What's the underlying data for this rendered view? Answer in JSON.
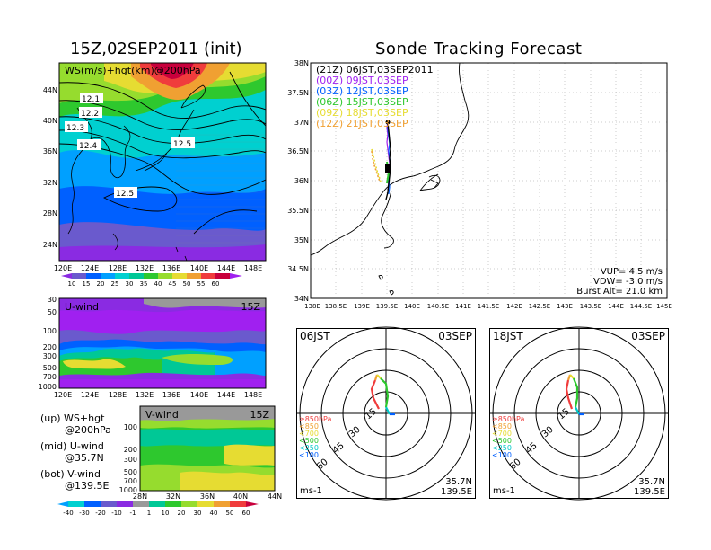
{
  "titles": {
    "left": "15Z,02SEP2011 (init)",
    "right": "Sonde Tracking Forecast"
  },
  "colors": {
    "purple": "#a020f0",
    "violet": "#8a2be2",
    "indigo": "#6a5acd",
    "blue": "#0060ff",
    "sky": "#00a0ff",
    "cyan": "#00d0d0",
    "teal": "#00c896",
    "green": "#2ec82e",
    "lime": "#96dc2e",
    "yellow": "#e6dc32",
    "orange": "#f0a032",
    "red": "#f03c3c",
    "darkred": "#c8003c",
    "gray": "#999999"
  },
  "ws_map": {
    "label": "WS(m/s)+hgt(km)@200hPa",
    "x_ticks": [
      "120E",
      "124E",
      "128E",
      "132E",
      "136E",
      "140E",
      "144E",
      "148E"
    ],
    "y_ticks": [
      "44N",
      "40N",
      "36N",
      "32N",
      "28N",
      "24N"
    ],
    "contour_labels": [
      "12.1",
      "12.2",
      "12.3",
      "12.4",
      "12.5",
      "12.5"
    ],
    "colorbar_ticks": [
      "10",
      "15",
      "20",
      "25",
      "30",
      "35",
      "40",
      "45",
      "50",
      "55",
      "60"
    ]
  },
  "u_wind": {
    "label": "U-wind",
    "time": "15Z",
    "y_ticks": [
      "30",
      "50",
      "100",
      "200",
      "300",
      "500",
      "700",
      "1000"
    ],
    "x_ticks": [
      "120E",
      "124E",
      "128E",
      "132E",
      "136E",
      "140E",
      "144E",
      "148E"
    ]
  },
  "v_wind": {
    "label": "V-wind",
    "time": "15Z",
    "y_ticks": [
      "100",
      "200",
      "300",
      "500",
      "700",
      "1000"
    ],
    "x_ticks": [
      "28N",
      "32N",
      "36N",
      "40N",
      "44N"
    ],
    "colorbar_ticks": [
      "-40",
      "-30",
      "-20",
      "-10",
      "-1",
      "1",
      "10",
      "20",
      "30",
      "40",
      "50",
      "60"
    ]
  },
  "legend_notes": [
    "(up) WS+hgt",
    "@200hPa",
    "(mid) U-wind",
    "@35.7N",
    "(bot) V-wind",
    "@139.5E"
  ],
  "track": {
    "x_ticks": [
      "138E",
      "138.5E",
      "139E",
      "139.5E",
      "140E",
      "140.5E",
      "141E",
      "141.5E",
      "142E",
      "142.5E",
      "143E",
      "143.5E",
      "144E",
      "144.5E",
      "145E"
    ],
    "y_ticks": [
      "38N",
      "37.5N",
      "37N",
      "36.5N",
      "36N",
      "35.5N",
      "35N",
      "34.5N",
      "34N"
    ],
    "launches": [
      {
        "text": "(21Z)  06JST,03SEP2011",
        "color": "#000000"
      },
      {
        "text": "(00Z)  09JST,03SEP",
        "color": "#a020f0"
      },
      {
        "text": "(03Z)  12JST,03SEP",
        "color": "#0060ff"
      },
      {
        "text": "(06Z)  15JST,03SEP",
        "color": "#2ec82e"
      },
      {
        "text": "(09Z)  18JST,03SEP",
        "color": "#e6dc32"
      },
      {
        "text": "(12Z)  21JST,03SEP",
        "color": "#f0a032"
      }
    ],
    "params": [
      "VUP= 4.5 m/s",
      "VDW= -3.0 m/s",
      "Burst Alt= 21.0 km"
    ]
  },
  "hodo_left": {
    "time": "06JST",
    "date": "03SEP",
    "ring_labels": [
      "15",
      "30",
      "45",
      "60"
    ],
    "levels": [
      {
        "text": "≥850hPa",
        "color": "#f03c3c"
      },
      {
        "text": "<850",
        "color": "#f0a032"
      },
      {
        "text": "<700",
        "color": "#e6dc32"
      },
      {
        "text": "<500",
        "color": "#2ec82e"
      },
      {
        "text": "<250",
        "color": "#00c8c8"
      },
      {
        "text": "<100",
        "color": "#0060ff"
      }
    ],
    "unit": "ms-1",
    "lat": "35.7N",
    "lon": "139.5E"
  },
  "hodo_right": {
    "time": "18JST",
    "date": "03SEP",
    "ring_labels": [
      "15",
      "30",
      "45",
      "60"
    ],
    "levels": [
      {
        "text": "≥850hPa",
        "color": "#f03c3c"
      },
      {
        "text": "<850",
        "color": "#f0a032"
      },
      {
        "text": "<700",
        "color": "#e6dc32"
      },
      {
        "text": "<500",
        "color": "#2ec82e"
      },
      {
        "text": "<250",
        "color": "#00c8c8"
      },
      {
        "text": "<100",
        "color": "#0060ff"
      }
    ],
    "unit": "ms-1",
    "lat": "35.7N",
    "lon": "139.5E"
  }
}
